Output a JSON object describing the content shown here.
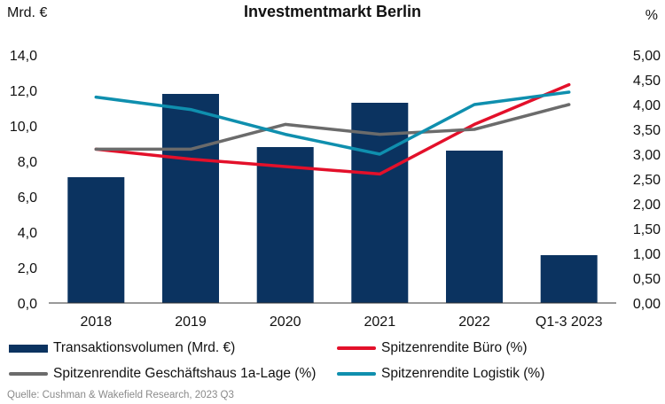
{
  "chart_data": {
    "type": "bar+line",
    "title": "Investmentmarkt Berlin",
    "y_left_unit": "Mrd. €",
    "y_right_unit": "%",
    "categories": [
      "2018",
      "2019",
      "2020",
      "2021",
      "2022",
      "Q1-3 2023"
    ],
    "y_left_ticks": [
      "0,0",
      "2,0",
      "4,0",
      "6,0",
      "8,0",
      "10,0",
      "12,0",
      "14,0"
    ],
    "y_right_ticks": [
      "0,00",
      "0,50",
      "1,00",
      "1,50",
      "2,00",
      "2,50",
      "3,00",
      "3,50",
      "4,00",
      "4,50",
      "5,00"
    ],
    "ylim_left": [
      0,
      14
    ],
    "ylim_right": [
      0,
      5
    ],
    "bars": {
      "name": "Transaktionsvolumen (Mrd. €)",
      "color": "#0b3360",
      "values": [
        7.1,
        11.8,
        8.8,
        11.3,
        8.6,
        2.7
      ]
    },
    "series": [
      {
        "name": "Spitzenrendite Büro (%)",
        "color": "#e3102a",
        "values": [
          3.1,
          2.9,
          2.75,
          2.6,
          3.6,
          4.4
        ]
      },
      {
        "name": "Spitzenrendite Geschäftshaus 1a-Lage (%)",
        "color": "#6b6b6b",
        "values": [
          3.1,
          3.1,
          3.6,
          3.4,
          3.5,
          4.0
        ]
      },
      {
        "name": "Spitzenrendite Logistik (%)",
        "color": "#0f8fae",
        "values": [
          4.15,
          3.9,
          3.4,
          3.0,
          4.0,
          4.25
        ]
      }
    ]
  },
  "source": "Quelle: Cushman & Wakefield Research, 2023 Q3"
}
